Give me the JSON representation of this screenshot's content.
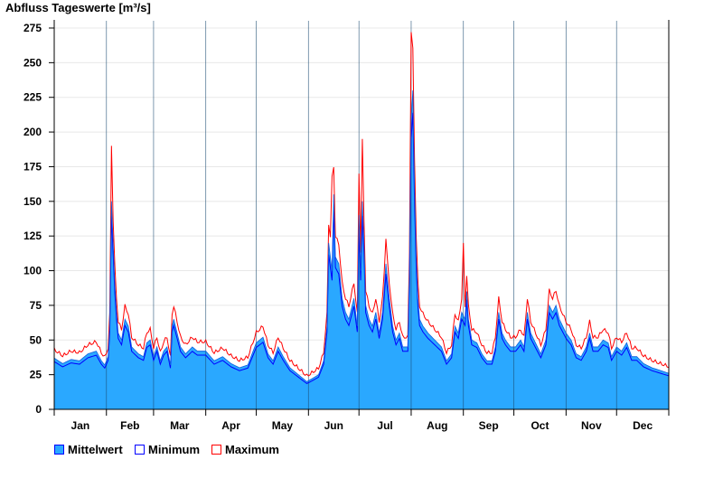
{
  "chart_data": {
    "type": "area",
    "title": "Abfluss Tageswerte [m³/s]",
    "ylim": [
      0,
      275
    ],
    "yticks": [
      0,
      25,
      50,
      75,
      100,
      125,
      150,
      175,
      200,
      225,
      250,
      275
    ],
    "xlim_days": [
      0,
      365
    ],
    "months": [
      "Jan",
      "Feb",
      "Mar",
      "Apr",
      "May",
      "Jun",
      "Jul",
      "Aug",
      "Sep",
      "Oct",
      "Nov",
      "Dec"
    ],
    "month_start_days": [
      0,
      31,
      59,
      90,
      120,
      151,
      181,
      212,
      243,
      273,
      304,
      334,
      365
    ],
    "grid": true,
    "legend_position": "bottom-left",
    "colors": {
      "mean": "#2aa8ff",
      "min": "#0000ff",
      "max": "#ff0000"
    },
    "legend": [
      "Mittelwert",
      "Minimum",
      "Maximum"
    ],
    "series": {
      "mean_keypoints": [
        [
          0,
          37
        ],
        [
          5,
          33
        ],
        [
          10,
          36
        ],
        [
          15,
          35
        ],
        [
          20,
          40
        ],
        [
          25,
          42
        ],
        [
          28,
          35
        ],
        [
          30,
          32
        ],
        [
          32,
          38
        ],
        [
          33,
          60
        ],
        [
          34,
          150
        ],
        [
          35,
          120
        ],
        [
          36,
          90
        ],
        [
          37,
          70
        ],
        [
          38,
          55
        ],
        [
          40,
          50
        ],
        [
          42,
          65
        ],
        [
          44,
          60
        ],
        [
          46,
          45
        ],
        [
          50,
          40
        ],
        [
          53,
          38
        ],
        [
          55,
          48
        ],
        [
          57,
          50
        ],
        [
          59,
          38
        ],
        [
          61,
          45
        ],
        [
          63,
          35
        ],
        [
          65,
          42
        ],
        [
          67,
          45
        ],
        [
          69,
          32
        ],
        [
          70,
          60
        ],
        [
          71,
          65
        ],
        [
          73,
          55
        ],
        [
          75,
          45
        ],
        [
          78,
          40
        ],
        [
          82,
          45
        ],
        [
          85,
          42
        ],
        [
          90,
          42
        ],
        [
          95,
          35
        ],
        [
          100,
          38
        ],
        [
          105,
          33
        ],
        [
          110,
          30
        ],
        [
          115,
          32
        ],
        [
          120,
          48
        ],
        [
          124,
          52
        ],
        [
          127,
          40
        ],
        [
          130,
          35
        ],
        [
          133,
          45
        ],
        [
          136,
          38
        ],
        [
          140,
          30
        ],
        [
          145,
          25
        ],
        [
          150,
          20
        ],
        [
          153,
          22
        ],
        [
          157,
          25
        ],
        [
          160,
          35
        ],
        [
          162,
          60
        ],
        [
          163,
          120
        ],
        [
          165,
          100
        ],
        [
          166,
          155
        ],
        [
          167,
          110
        ],
        [
          169,
          105
        ],
        [
          171,
          80
        ],
        [
          173,
          70
        ],
        [
          175,
          65
        ],
        [
          178,
          80
        ],
        [
          180,
          60
        ],
        [
          181,
          140
        ],
        [
          182,
          100
        ],
        [
          183,
          150
        ],
        [
          184,
          120
        ],
        [
          185,
          75
        ],
        [
          187,
          65
        ],
        [
          189,
          60
        ],
        [
          191,
          70
        ],
        [
          193,
          55
        ],
        [
          195,
          70
        ],
        [
          197,
          105
        ],
        [
          199,
          80
        ],
        [
          201,
          60
        ],
        [
          203,
          50
        ],
        [
          205,
          55
        ],
        [
          207,
          45
        ],
        [
          210,
          45
        ],
        [
          211,
          100
        ],
        [
          212,
          210
        ],
        [
          213,
          230
        ],
        [
          214,
          160
        ],
        [
          215,
          110
        ],
        [
          216,
          80
        ],
        [
          217,
          65
        ],
        [
          219,
          60
        ],
        [
          222,
          55
        ],
        [
          226,
          50
        ],
        [
          230,
          45
        ],
        [
          233,
          35
        ],
        [
          236,
          40
        ],
        [
          238,
          60
        ],
        [
          240,
          55
        ],
        [
          242,
          70
        ],
        [
          244,
          65
        ],
        [
          245,
          85
        ],
        [
          246,
          65
        ],
        [
          248,
          50
        ],
        [
          251,
          48
        ],
        [
          254,
          40
        ],
        [
          257,
          35
        ],
        [
          260,
          35
        ],
        [
          262,
          45
        ],
        [
          264,
          70
        ],
        [
          266,
          55
        ],
        [
          268,
          50
        ],
        [
          271,
          45
        ],
        [
          274,
          45
        ],
        [
          277,
          50
        ],
        [
          279,
          45
        ],
        [
          281,
          70
        ],
        [
          283,
          55
        ],
        [
          285,
          50
        ],
        [
          287,
          45
        ],
        [
          289,
          40
        ],
        [
          292,
          50
        ],
        [
          294,
          75
        ],
        [
          296,
          70
        ],
        [
          298,
          75
        ],
        [
          300,
          65
        ],
        [
          304,
          55
        ],
        [
          307,
          50
        ],
        [
          310,
          40
        ],
        [
          313,
          38
        ],
        [
          316,
          45
        ],
        [
          318,
          55
        ],
        [
          320,
          45
        ],
        [
          323,
          45
        ],
        [
          326,
          50
        ],
        [
          329,
          48
        ],
        [
          331,
          38
        ],
        [
          334,
          45
        ],
        [
          337,
          42
        ],
        [
          340,
          48
        ],
        [
          343,
          38
        ],
        [
          346,
          38
        ],
        [
          350,
          33
        ],
        [
          355,
          30
        ],
        [
          360,
          28
        ],
        [
          365,
          26
        ]
      ],
      "max_factor": 1.12,
      "min_factor": 0.93,
      "max_peaks": [
        [
          34,
          190
        ],
        [
          163,
          133
        ],
        [
          165,
          168
        ],
        [
          181,
          170
        ],
        [
          183,
          195
        ],
        [
          197,
          123
        ],
        [
          212,
          272
        ],
        [
          243,
          120
        ]
      ]
    }
  }
}
